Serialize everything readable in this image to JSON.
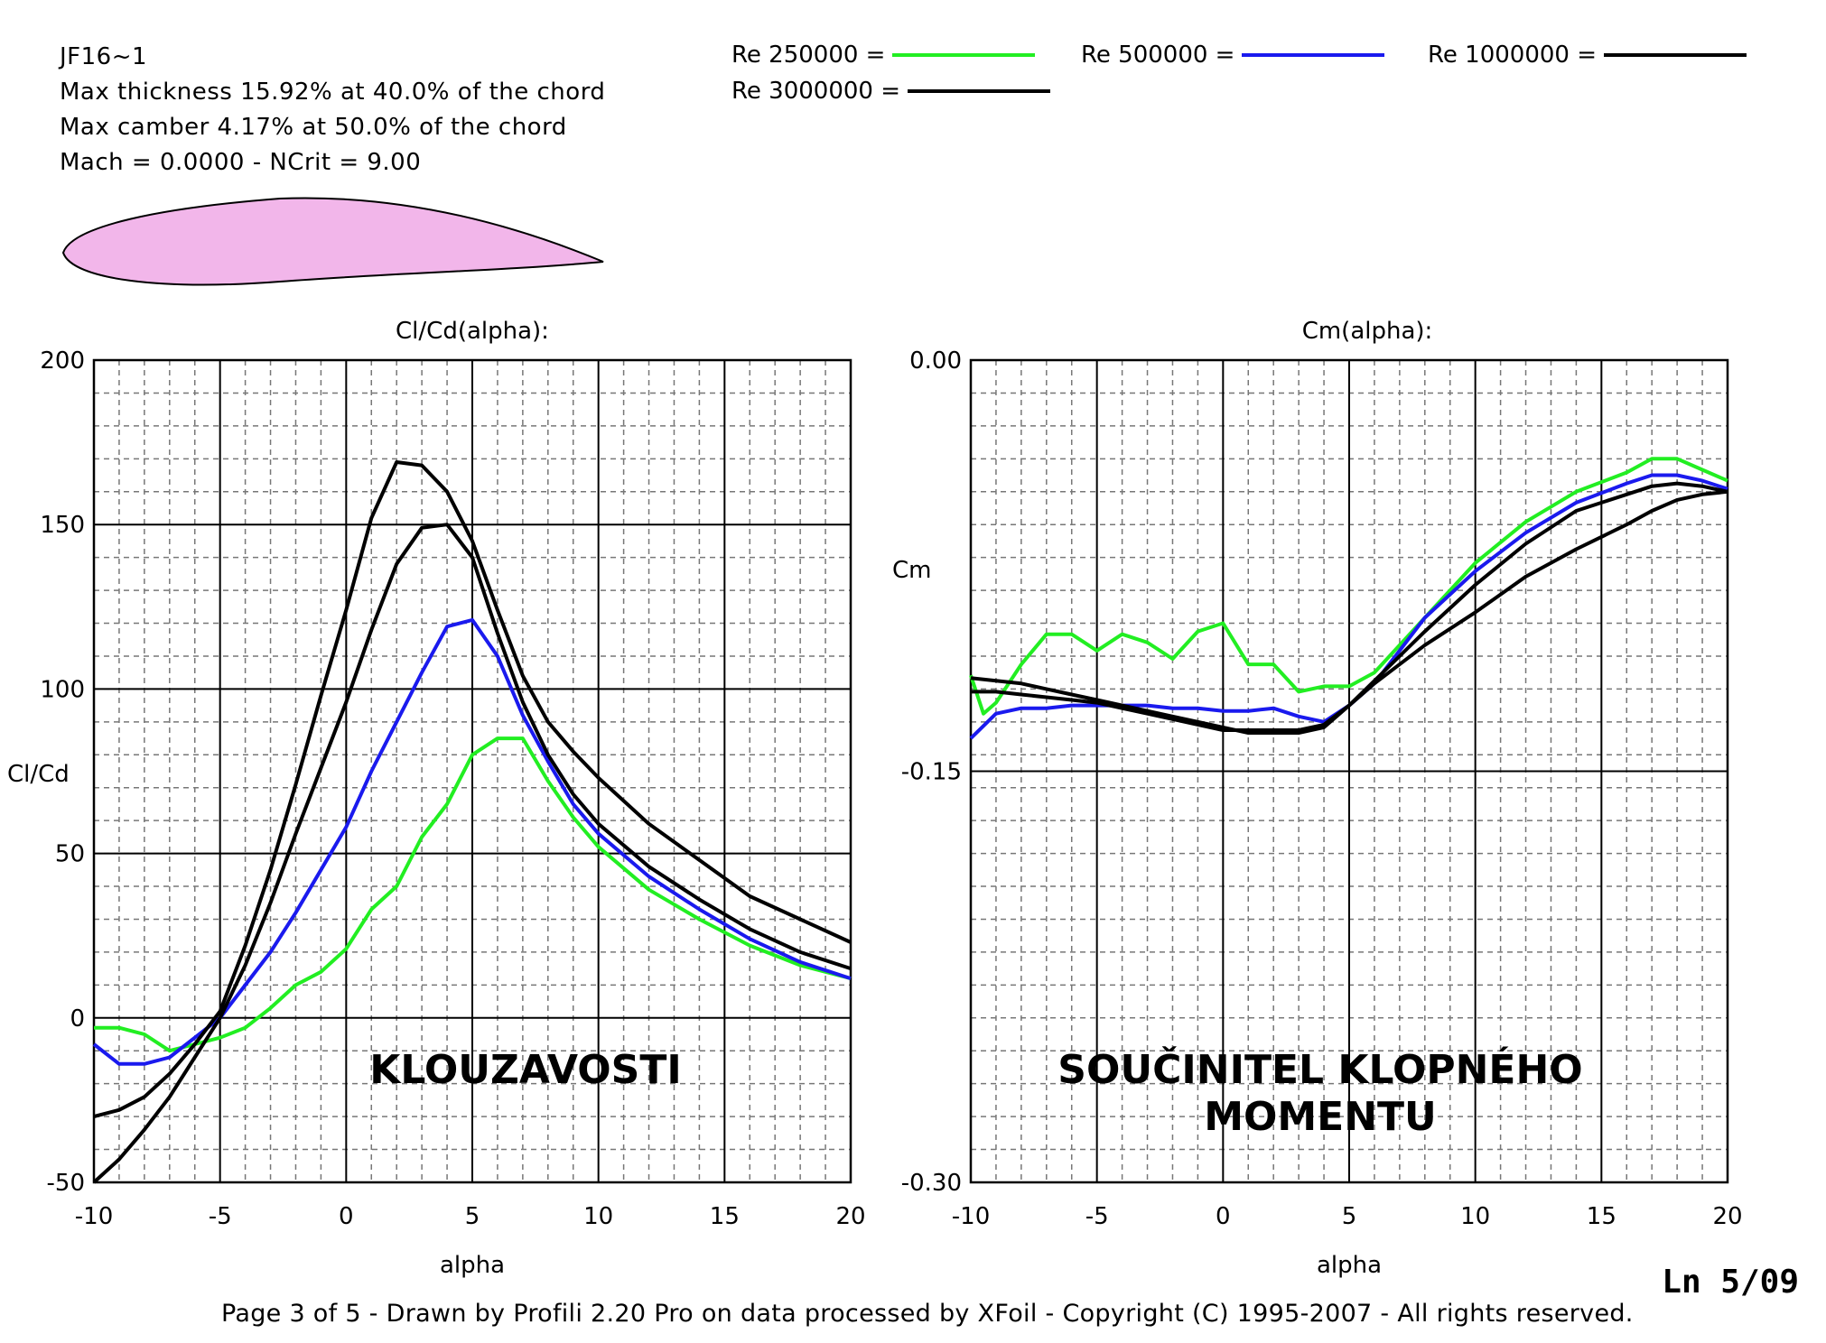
{
  "header": {
    "airfoil_name": "JF16~1",
    "thickness_line": "Max thickness 15.92% at 40.0% of the chord",
    "camber_line": "Max camber 4.17% at 50.0% of the chord",
    "mach_line": "Mach = 0.0000 - NCrit = 9.00"
  },
  "legend": [
    {
      "label": "Re 250000 =",
      "color": "#22ee22"
    },
    {
      "label": "Re 500000 =",
      "color": "#1a1aee"
    },
    {
      "label": "Re 1000000 =",
      "color": "#000000"
    },
    {
      "label": "Re 3000000 =",
      "color": "#000000"
    }
  ],
  "footer": "Page 3 of 5   -   Drawn by Profili 2.20 Pro on data processed by  XFoil - Copyright (C) 1995-2007 - All rights reserved.",
  "stamp": "Ln 5/09",
  "chart_data": [
    {
      "type": "line",
      "title": "Cl/Cd(alpha):",
      "xlabel": "alpha",
      "ylabel": "Cl/Cd",
      "xlim": [
        -10,
        20
      ],
      "ylim": [
        -50,
        200
      ],
      "xticks": [
        -10,
        -5,
        0,
        5,
        10,
        15,
        20
      ],
      "yticks": [
        -50,
        0,
        50,
        100,
        150,
        200
      ],
      "grid": true,
      "annotation": "KLOUZAVOSTI",
      "series": [
        {
          "name": "Re 250000",
          "color": "#22ee22",
          "x": [
            -10,
            -9,
            -8,
            -7,
            -6,
            -5,
            -4,
            -3,
            -2,
            -1,
            0,
            1,
            2,
            3,
            4,
            5,
            6,
            7,
            8,
            9,
            10,
            12,
            14,
            16,
            18,
            20
          ],
          "y": [
            -3,
            -3,
            -5,
            -10,
            -8,
            -6,
            -3,
            3,
            10,
            14,
            21,
            33,
            40,
            55,
            65,
            80,
            85,
            85,
            72,
            61,
            52,
            39,
            30,
            22,
            16,
            12
          ]
        },
        {
          "name": "Re 500000",
          "color": "#1a1aee",
          "x": [
            -10,
            -9,
            -8,
            -7,
            -6,
            -5,
            -4,
            -3,
            -2,
            -1,
            0,
            1,
            2,
            3,
            4,
            5,
            6,
            7,
            8,
            9,
            10,
            12,
            14,
            16,
            18,
            20
          ],
          "y": [
            -8,
            -14,
            -14,
            -12,
            -6,
            0,
            10,
            20,
            32,
            45,
            58,
            75,
            90,
            105,
            119,
            121,
            110,
            92,
            78,
            65,
            56,
            43,
            33,
            24,
            17,
            12
          ]
        },
        {
          "name": "Re 1000000",
          "color": "#000000",
          "x": [
            -10,
            -9,
            -8,
            -7,
            -6,
            -5,
            -4,
            -3,
            -2,
            -1,
            0,
            1,
            2,
            3,
            4,
            5,
            6,
            7,
            8,
            9,
            10,
            12,
            14,
            16,
            18,
            20
          ],
          "y": [
            -50,
            -43,
            -34,
            -24,
            -12,
            0,
            16,
            35,
            56,
            76,
            96,
            118,
            138,
            149,
            150,
            140,
            117,
            96,
            80,
            68,
            59,
            46,
            36,
            27,
            20,
            15
          ]
        },
        {
          "name": "Re 3000000",
          "color": "#000000",
          "x": [
            -10,
            -9,
            -8,
            -7,
            -6,
            -5,
            -4,
            -3,
            -2,
            -1,
            0,
            1,
            2,
            3,
            4,
            5,
            6,
            7,
            8,
            9,
            10,
            12,
            14,
            16,
            18,
            20
          ],
          "y": [
            -30,
            -28,
            -24,
            -17,
            -8,
            2,
            22,
            45,
            71,
            98,
            124,
            152,
            169,
            168,
            160,
            145,
            124,
            104,
            90,
            81,
            73,
            59,
            48,
            37,
            30,
            23
          ]
        }
      ]
    },
    {
      "type": "line",
      "title": "Cm(alpha):",
      "xlabel": "alpha",
      "ylabel": "Cm",
      "xlim": [
        -10,
        20
      ],
      "ylim": [
        -0.3,
        0.0
      ],
      "xticks": [
        -10,
        -5,
        0,
        5,
        10,
        15,
        20
      ],
      "yticks": [
        "0.00",
        "-0.15",
        "-0.30"
      ],
      "grid": true,
      "annotation": [
        "SOUČINITEL KLOPNÉHO",
        "MOMENTU"
      ],
      "series": [
        {
          "name": "Re 250000",
          "color": "#22ee22",
          "x": [
            -10,
            -9.5,
            -9,
            -8,
            -7,
            -6,
            -5,
            -4,
            -3,
            -2,
            -1,
            0,
            1,
            2,
            3,
            4,
            5,
            6,
            8,
            10,
            12,
            14,
            16,
            17,
            18,
            19,
            20
          ],
          "y": [
            -0.115,
            -0.129,
            -0.125,
            -0.111,
            -0.1,
            -0.1,
            -0.106,
            -0.1,
            -0.103,
            -0.109,
            -0.099,
            -0.096,
            -0.111,
            -0.111,
            -0.121,
            -0.119,
            -0.119,
            -0.114,
            -0.094,
            -0.074,
            -0.059,
            -0.048,
            -0.041,
            -0.036,
            -0.036,
            -0.04,
            -0.044
          ]
        },
        {
          "name": "Re 500000",
          "color": "#1a1aee",
          "x": [
            -10,
            -9,
            -8,
            -7,
            -6,
            -5,
            -4,
            -3,
            -2,
            -1,
            0,
            1,
            2,
            3,
            4,
            5,
            6,
            8,
            10,
            12,
            14,
            16,
            17,
            18,
            19,
            20
          ],
          "y": [
            -0.138,
            -0.129,
            -0.127,
            -0.127,
            -0.126,
            -0.126,
            -0.126,
            -0.126,
            -0.127,
            -0.127,
            -0.128,
            -0.128,
            -0.127,
            -0.13,
            -0.132,
            -0.126,
            -0.118,
            -0.094,
            -0.077,
            -0.063,
            -0.052,
            -0.045,
            -0.042,
            -0.042,
            -0.044,
            -0.047
          ]
        },
        {
          "name": "Re 1000000",
          "color": "#000000",
          "x": [
            -10,
            -9,
            -8,
            -7,
            -6,
            -5,
            -4,
            -3,
            -2,
            -1,
            0,
            1,
            2,
            3,
            4,
            5,
            6,
            8,
            10,
            12,
            14,
            16,
            17,
            18,
            19,
            20
          ],
          "y": [
            -0.121,
            -0.121,
            -0.122,
            -0.123,
            -0.124,
            -0.125,
            -0.127,
            -0.129,
            -0.131,
            -0.133,
            -0.135,
            -0.135,
            -0.135,
            -0.135,
            -0.133,
            -0.126,
            -0.117,
            -0.099,
            -0.082,
            -0.067,
            -0.055,
            -0.049,
            -0.046,
            -0.045,
            -0.046,
            -0.048
          ]
        },
        {
          "name": "Re 3000000",
          "color": "#000000",
          "x": [
            -10,
            -9,
            -8,
            -7,
            -6,
            -5,
            -4,
            -3,
            -2,
            -1,
            0,
            1,
            2,
            3,
            4,
            5,
            6,
            8,
            10,
            12,
            14,
            16,
            17,
            18,
            19,
            20
          ],
          "y": [
            -0.116,
            -0.117,
            -0.118,
            -0.12,
            -0.122,
            -0.124,
            -0.126,
            -0.128,
            -0.13,
            -0.132,
            -0.134,
            -0.136,
            -0.136,
            -0.136,
            -0.134,
            -0.126,
            -0.118,
            -0.104,
            -0.092,
            -0.079,
            -0.069,
            -0.06,
            -0.055,
            -0.051,
            -0.049,
            -0.048
          ]
        }
      ]
    }
  ]
}
